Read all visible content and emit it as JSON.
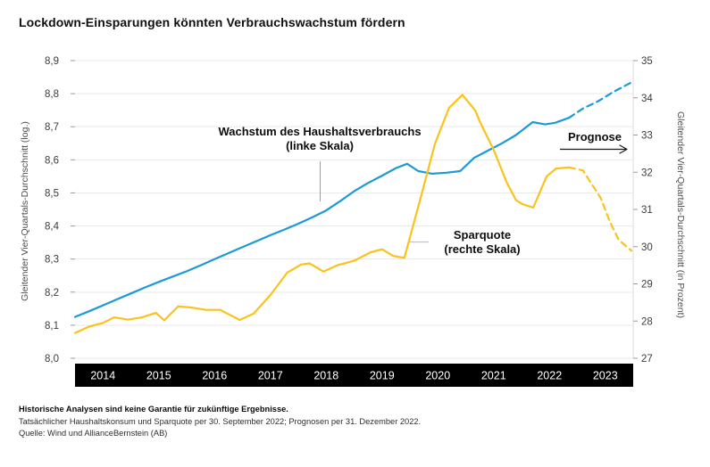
{
  "title": "Lockdown-Einsparungen könnten Verbrauchswachstum fördern",
  "chart_data": {
    "type": "line",
    "x_axis": {
      "years": [
        "2014",
        "2015",
        "2016",
        "2017",
        "2018",
        "2019",
        "2020",
        "2021",
        "2022",
        "2023"
      ],
      "range": [
        2013.5,
        2023.5
      ]
    },
    "left_axis": {
      "title": "Gleitender Vier-Quartals-Durchschnitt (log.)",
      "ticks": [
        "8,9",
        "8,8",
        "8,7",
        "8,6",
        "8,5",
        "8,4",
        "8,3",
        "8,2",
        "8,1",
        "8,0"
      ],
      "range": [
        8.0,
        8.9
      ]
    },
    "right_axis": {
      "title": "Gleitender Vier-Quartals-Durchschnitt (in Prozent)",
      "ticks": [
        "35",
        "34",
        "33",
        "32",
        "31",
        "30",
        "29",
        "28",
        "27"
      ],
      "range": [
        27,
        35
      ]
    },
    "grid": "horizontal",
    "series": [
      {
        "name": "Wachstum des Haushaltsverbrauchs",
        "axis": "left",
        "color": "#1b9ad6",
        "solid": [
          [
            2013.5,
            8.125
          ],
          [
            2013.75,
            8.142
          ],
          [
            2014,
            8.16
          ],
          [
            2014.25,
            8.178
          ],
          [
            2014.5,
            8.196
          ],
          [
            2014.75,
            8.214
          ],
          [
            2015,
            8.231
          ],
          [
            2015.25,
            8.247
          ],
          [
            2015.5,
            8.263
          ],
          [
            2015.75,
            8.281
          ],
          [
            2016,
            8.3
          ],
          [
            2016.25,
            8.318
          ],
          [
            2016.5,
            8.336
          ],
          [
            2016.75,
            8.354
          ],
          [
            2017,
            8.372
          ],
          [
            2017.25,
            8.389
          ],
          [
            2017.5,
            8.407
          ],
          [
            2017.75,
            8.426
          ],
          [
            2018,
            8.447
          ],
          [
            2018.25,
            8.475
          ],
          [
            2018.5,
            8.505
          ],
          [
            2018.75,
            8.53
          ],
          [
            2019,
            8.552
          ],
          [
            2019.25,
            8.575
          ],
          [
            2019.45,
            8.588
          ],
          [
            2019.65,
            8.566
          ],
          [
            2019.9,
            8.558
          ],
          [
            2020.15,
            8.561
          ],
          [
            2020.4,
            8.566
          ],
          [
            2020.65,
            8.606
          ],
          [
            2020.9,
            8.628
          ],
          [
            2021.15,
            8.65
          ],
          [
            2021.4,
            8.675
          ],
          [
            2021.7,
            8.714
          ],
          [
            2021.92,
            8.707
          ],
          [
            2022.1,
            8.712
          ],
          [
            2022.35,
            8.727
          ]
        ],
        "forecast": [
          [
            2022.35,
            8.727
          ],
          [
            2022.6,
            8.755
          ],
          [
            2022.88,
            8.778
          ],
          [
            2023.15,
            8.806
          ],
          [
            2023.48,
            8.835
          ]
        ]
      },
      {
        "name": "Sparquote",
        "axis": "right",
        "color": "#fcc21b",
        "solid": [
          [
            2013.5,
            27.68
          ],
          [
            2013.75,
            27.85
          ],
          [
            2014,
            27.95
          ],
          [
            2014.2,
            28.1
          ],
          [
            2014.45,
            28.04
          ],
          [
            2014.7,
            28.1
          ],
          [
            2014.95,
            28.22
          ],
          [
            2015.1,
            28.02
          ],
          [
            2015.35,
            28.4
          ],
          [
            2015.6,
            28.36
          ],
          [
            2015.85,
            28.3
          ],
          [
            2016.1,
            28.3
          ],
          [
            2016.45,
            28.03
          ],
          [
            2016.7,
            28.2
          ],
          [
            2017,
            28.7
          ],
          [
            2017.3,
            29.3
          ],
          [
            2017.55,
            29.52
          ],
          [
            2017.7,
            29.55
          ],
          [
            2017.95,
            29.33
          ],
          [
            2018.2,
            29.5
          ],
          [
            2018.5,
            29.62
          ],
          [
            2018.8,
            29.85
          ],
          [
            2019,
            29.93
          ],
          [
            2019.2,
            29.75
          ],
          [
            2019.4,
            29.7
          ],
          [
            2019.68,
            31.25
          ],
          [
            2019.95,
            32.77
          ],
          [
            2020.2,
            33.73
          ],
          [
            2020.44,
            34.08
          ],
          [
            2020.67,
            33.66
          ],
          [
            2020.75,
            33.37
          ],
          [
            2021,
            32.6
          ],
          [
            2021.23,
            31.74
          ],
          [
            2021.4,
            31.25
          ],
          [
            2021.52,
            31.14
          ],
          [
            2021.71,
            31.05
          ],
          [
            2021.95,
            31.89
          ],
          [
            2022.12,
            32.1
          ],
          [
            2022.35,
            32.13
          ]
        ],
        "forecast": [
          [
            2022.35,
            32.13
          ],
          [
            2022.6,
            32.05
          ],
          [
            2022.92,
            31.3
          ],
          [
            2023.08,
            30.68
          ],
          [
            2023.24,
            30.18
          ],
          [
            2023.47,
            29.89
          ]
        ]
      }
    ],
    "annotations": {
      "consumption_line1": "Wachstum des Haushaltsverbrauchs",
      "consumption_line2": "(linke Skala)",
      "savings_line1": "Sparquote",
      "savings_line2": "(rechte Skala)",
      "forecast_label": "Prognose"
    }
  },
  "colors": {
    "consumption_line": "#1b9ad6",
    "savings_line": "#fcc21b",
    "x_axis_bar": "#000000",
    "gridline": "#e9e9e9"
  },
  "footer": {
    "disclaimer": "Historische Analysen sind keine Garantie für zukünftige Ergebnisse.",
    "note": "Tatsächlicher Haushaltskonsum und Sparquote per 30. September 2022; Prognosen per 31. Dezember 2022.",
    "source": "Quelle: Wind und AllianceBernstein (AB)"
  }
}
